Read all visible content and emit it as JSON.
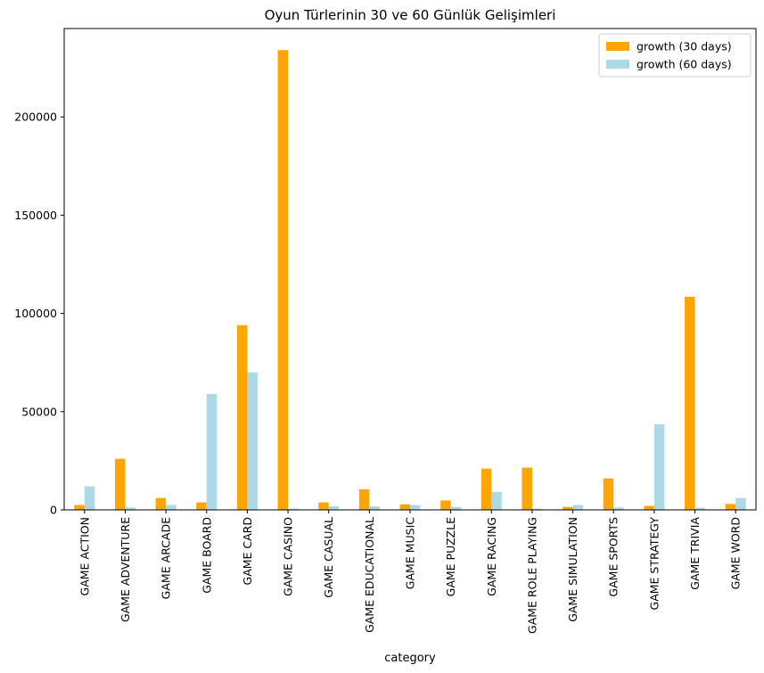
{
  "chart_data": {
    "type": "bar",
    "title": "Oyun Türlerinin 30 ve 60 Günlük Gelişimleri",
    "xlabel": "category",
    "ylabel": "",
    "ylim": [
      0,
      245000
    ],
    "yticks": [
      0,
      50000,
      100000,
      150000,
      200000
    ],
    "grid": false,
    "legend_position": "top-right",
    "categories": [
      "GAME ACTION",
      "GAME ADVENTURE",
      "GAME ARCADE",
      "GAME BOARD",
      "GAME CARD",
      "GAME CASINO",
      "GAME CASUAL",
      "GAME EDUCATIONAL",
      "GAME MUSIC",
      "GAME PUZZLE",
      "GAME RACING",
      "GAME ROLE PLAYING",
      "GAME SIMULATION",
      "GAME SPORTS",
      "GAME STRATEGY",
      "GAME TRIVIA",
      "GAME WORD"
    ],
    "series": [
      {
        "name": "growth (30 days)",
        "color": "#ffa500",
        "values": [
          2500,
          26000,
          6000,
          3800,
          94000,
          234000,
          3800,
          10500,
          2800,
          4800,
          21000,
          21500,
          1500,
          16000,
          2000,
          108500,
          3000
        ]
      },
      {
        "name": "growth (60 days)",
        "color": "#add8e6",
        "values": [
          12000,
          1200,
          2500,
          59000,
          70000,
          600,
          1800,
          1800,
          2500,
          1500,
          9200,
          600,
          2500,
          1200,
          43500,
          1000,
          6000
        ]
      }
    ]
  }
}
